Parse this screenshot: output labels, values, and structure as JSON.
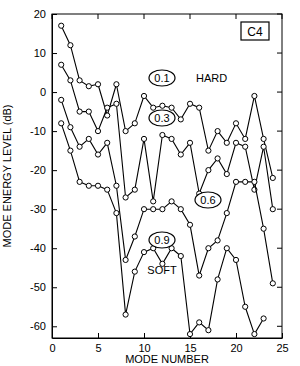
{
  "chart_data": {
    "type": "line",
    "title": "C4",
    "xlabel": "MODE NUMBER",
    "ylabel": "MODE ENERGY LEVEL (dB)",
    "annotations": [
      "HARD",
      "SOFT"
    ],
    "x": [
      1,
      2,
      3,
      4,
      5,
      6,
      7,
      8,
      9,
      10,
      11,
      12,
      13,
      14,
      15,
      16,
      17,
      18,
      19,
      20,
      21,
      22,
      23,
      24
    ],
    "xlim": [
      0,
      25
    ],
    "xticks": [
      0,
      5,
      10,
      15,
      20,
      25
    ],
    "ylim": [
      -63,
      20
    ],
    "yticks": [
      20,
      10,
      0,
      -10,
      -20,
      -30,
      -40,
      -50,
      -60
    ],
    "grid": false,
    "series": [
      {
        "name": "0.1",
        "color": "#000000",
        "marker": "circle",
        "line_style": "solid",
        "values": [
          17,
          12,
          3,
          1.5,
          2,
          -6,
          2,
          -10,
          -8,
          -1,
          -4,
          -3.5,
          -4,
          -7,
          -3,
          -4,
          -15,
          -10,
          -13,
          -8,
          -12,
          -1,
          -12,
          -22
        ]
      },
      {
        "name": "0.3",
        "color": "#000000",
        "marker": "circle",
        "line_style": "solid",
        "values": [
          7,
          3,
          -5,
          -5,
          -10,
          -4,
          -3,
          -27,
          -25,
          -12,
          -28,
          -11,
          -12,
          -16,
          -13,
          -26,
          -20,
          -17,
          -21,
          -13,
          -14,
          -25,
          -14,
          -30
        ]
      },
      {
        "name": "0.6",
        "color": "#000000",
        "marker": "circle",
        "line_style": "solid",
        "values": [
          -2,
          -9,
          -14,
          -12,
          -16,
          -13,
          -24,
          -43,
          -37,
          -30,
          -30,
          -30,
          -28,
          -30,
          -34,
          -47,
          -40,
          -38,
          -31,
          -23,
          -23,
          -23,
          -35,
          -49
        ]
      },
      {
        "name": "0.9",
        "color": "#000000",
        "marker": "circle",
        "line_style": "solid",
        "values": [
          -8,
          -15,
          -23,
          -24,
          -24,
          -25,
          -31,
          -57,
          -46,
          -41,
          -40,
          -44,
          -40,
          -42,
          -62,
          -59,
          -61,
          -48,
          -40,
          -43,
          -55,
          -62,
          -58,
          null
        ]
      }
    ]
  }
}
